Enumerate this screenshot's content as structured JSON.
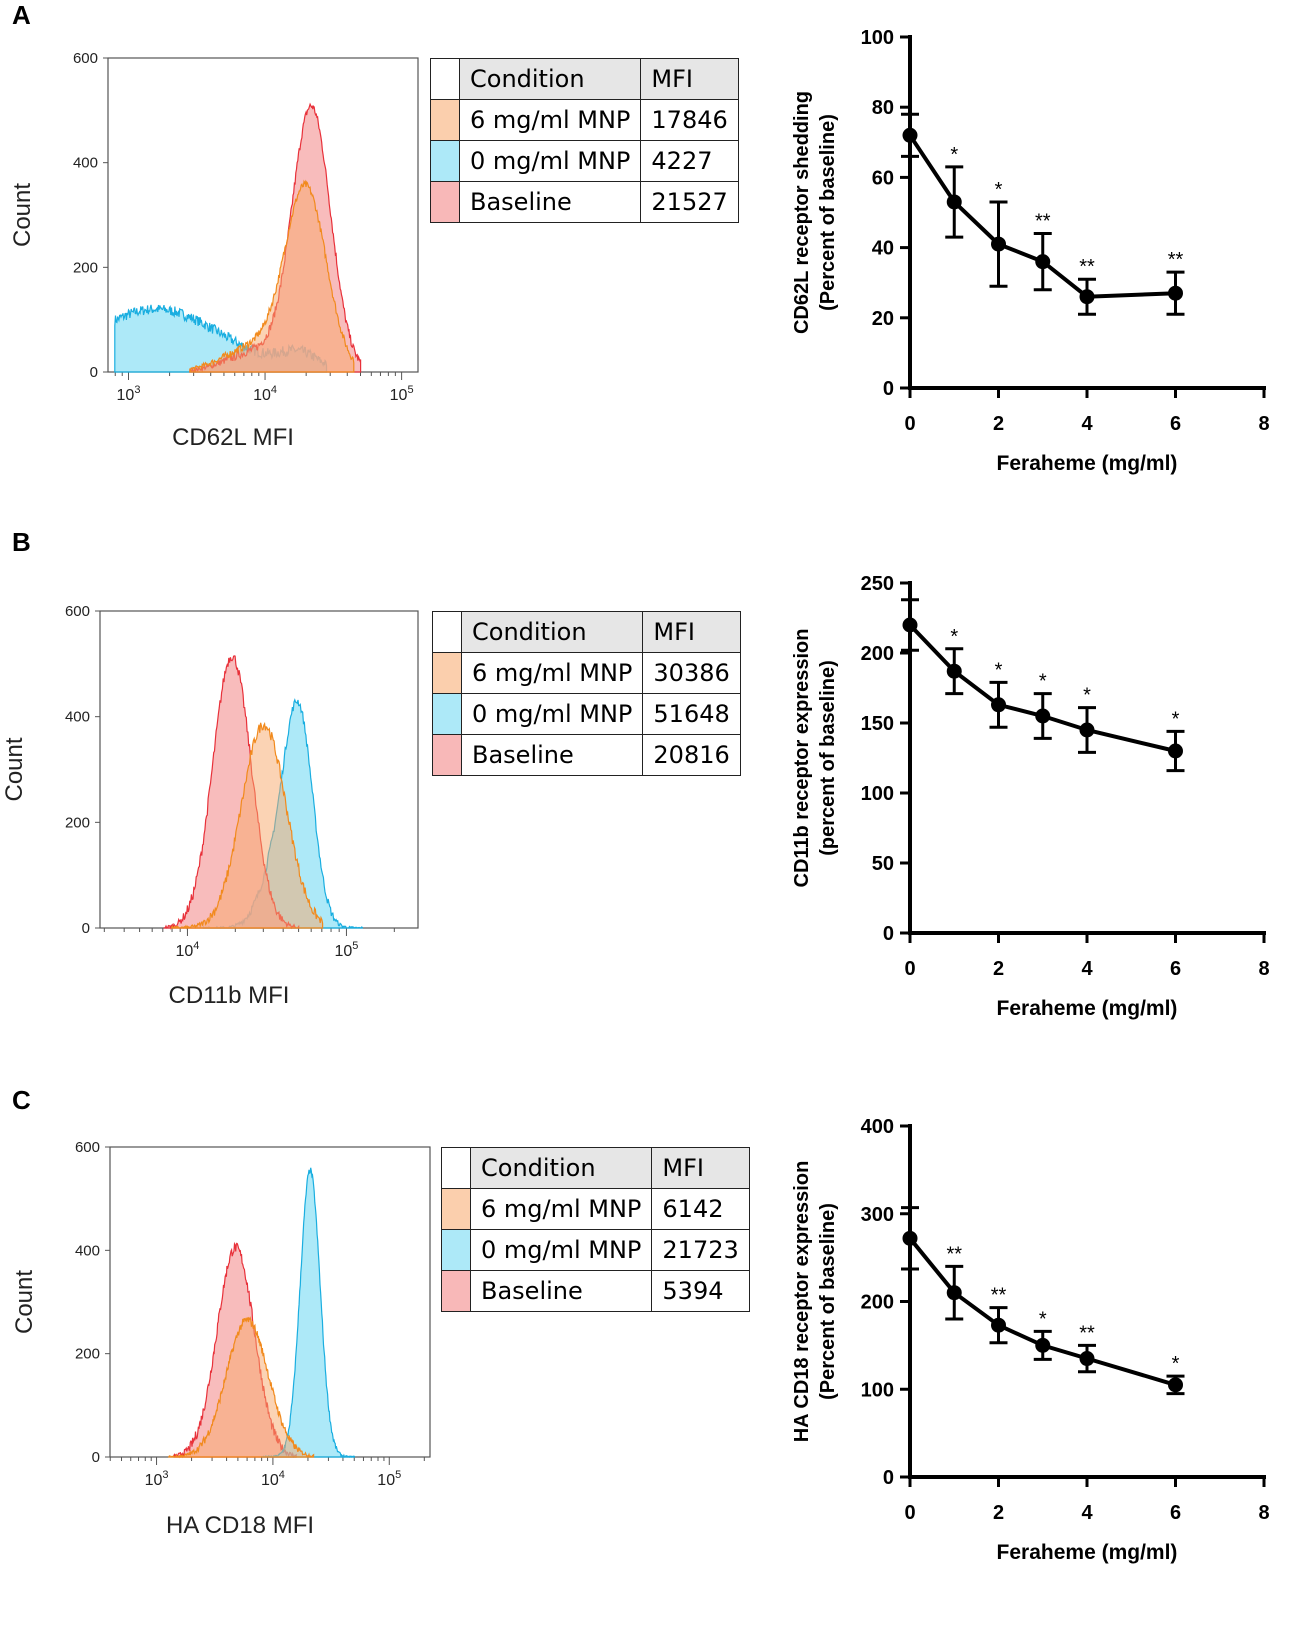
{
  "colors": {
    "orange": "#f7a86a",
    "blue": "#5cd4f2",
    "red": "#f5a0a0",
    "orange_line": "#f18a1d",
    "blue_line": "#1aaee0",
    "red_line": "#e8313a"
  },
  "table_headers": {
    "condition": "Condition",
    "mfi": "MFI"
  },
  "chart_data": [
    {
      "panel": "A",
      "type": "histogram",
      "xlabel": "CD62L MFI",
      "ylabel": "Count",
      "ylim": [
        0,
        600
      ],
      "yticks": [
        "0",
        "200",
        "400",
        "600"
      ],
      "xlim_log": [
        2.85,
        5.12
      ],
      "xticks": [
        {
          "base": "10",
          "exp": "3",
          "v": 3
        },
        {
          "base": "10",
          "exp": "4",
          "v": 4
        },
        {
          "base": "10",
          "exp": "5",
          "v": 5
        }
      ],
      "series": [
        {
          "name": "0 mg/ml MNP",
          "color": "blue",
          "peaks": [
            {
              "c": 3.2,
              "s": 0.48,
              "h": 120
            },
            {
              "c": 4.25,
              "s": 0.14,
              "h": 30
            }
          ],
          "lo": 2.9,
          "hi": 4.45,
          "noise": 10
        },
        {
          "name": "Baseline",
          "color": "red",
          "peaks": [
            {
              "c": 4.34,
              "s": 0.14,
              "h": 500
            },
            {
              "c": 3.95,
              "s": 0.22,
              "h": 40
            }
          ],
          "lo": 3.45,
          "hi": 4.7,
          "noise": 8
        },
        {
          "name": "6 mg/ml MNP",
          "color": "orange",
          "peaks": [
            {
              "c": 4.3,
              "s": 0.15,
              "h": 340
            },
            {
              "c": 3.95,
              "s": 0.24,
              "h": 50
            }
          ],
          "lo": 3.45,
          "hi": 4.65,
          "noise": 7
        }
      ],
      "table": [
        {
          "condition": "6 mg/ml MNP",
          "mfi": "17846",
          "color": "orange"
        },
        {
          "condition": "0 mg/ml MNP",
          "mfi": "4227",
          "color": "blue"
        },
        {
          "condition": "Baseline",
          "mfi": "21527",
          "color": "red"
        }
      ]
    },
    {
      "panel": "A",
      "type": "line",
      "xlabel": "Feraheme (mg/ml)",
      "ylabel": [
        "CD62L receptor shedding",
        "(Percent of baseline)"
      ],
      "ylim": [
        0,
        100
      ],
      "yticks": [
        0,
        20,
        40,
        60,
        80,
        100
      ],
      "xlim": [
        0,
        8
      ],
      "xticks": [
        0,
        2,
        4,
        6,
        8
      ],
      "x": [
        0,
        1,
        2,
        3,
        4,
        6
      ],
      "y": [
        72,
        53,
        41,
        36,
        26,
        27
      ],
      "err": [
        6,
        10,
        12,
        8,
        5,
        6
      ],
      "sig": [
        "",
        "*",
        "*",
        "**",
        "**",
        "**"
      ]
    },
    {
      "panel": "B",
      "type": "histogram",
      "xlabel": "CD11b MFI",
      "ylabel": "Count",
      "ylim": [
        0,
        600
      ],
      "yticks": [
        "0",
        "200",
        "400",
        "600"
      ],
      "xlim_log": [
        3.45,
        5.45
      ],
      "xticks": [
        {
          "base": "10",
          "exp": "4",
          "v": 4
        },
        {
          "base": "10",
          "exp": "5",
          "v": 5
        }
      ],
      "series": [
        {
          "name": "0 mg/ml MNP",
          "color": "blue",
          "peaks": [
            {
              "c": 4.7,
              "s": 0.09,
              "h": 395
            },
            {
              "c": 4.55,
              "s": 0.1,
              "h": 100
            }
          ],
          "lo": 4.1,
          "hi": 5.1,
          "noise": 8
        },
        {
          "name": "Baseline",
          "color": "red",
          "peaks": [
            {
              "c": 4.28,
              "s": 0.12,
              "h": 515
            }
          ],
          "lo": 3.85,
          "hi": 4.7,
          "noise": 10
        },
        {
          "name": "6 mg/ml MNP",
          "color": "orange",
          "peaks": [
            {
              "c": 4.48,
              "s": 0.14,
              "h": 385
            }
          ],
          "lo": 3.9,
          "hi": 4.85,
          "noise": 10
        }
      ],
      "table": [
        {
          "condition": "6 mg/ml MNP",
          "mfi": "30386",
          "color": "orange"
        },
        {
          "condition": "0 mg/ml MNP",
          "mfi": "51648",
          "color": "blue"
        },
        {
          "condition": "Baseline",
          "mfi": "20816",
          "color": "red"
        }
      ]
    },
    {
      "panel": "B",
      "type": "line",
      "xlabel": "Feraheme (mg/ml)",
      "ylabel": [
        "CD11b receptor expression",
        "(percent of baseline)"
      ],
      "ylim": [
        0,
        250
      ],
      "yticks": [
        0,
        50,
        100,
        150,
        200,
        250
      ],
      "xlim": [
        0,
        8
      ],
      "xticks": [
        0,
        2,
        4,
        6,
        8
      ],
      "x": [
        0,
        1,
        2,
        3,
        4,
        6
      ],
      "y": [
        220,
        187,
        163,
        155,
        145,
        130
      ],
      "err": [
        18,
        16,
        16,
        16,
        16,
        14
      ],
      "sig": [
        "",
        "*",
        "*",
        "*",
        "*",
        "*"
      ]
    },
    {
      "panel": "C",
      "type": "histogram",
      "xlabel": "HA CD18 MFI",
      "ylabel": "Count",
      "ylim": [
        0,
        600
      ],
      "yticks": [
        "0",
        "200",
        "400",
        "600"
      ],
      "xlim_log": [
        2.6,
        5.35
      ],
      "xticks": [
        {
          "base": "10",
          "exp": "3",
          "v": 3
        },
        {
          "base": "10",
          "exp": "4",
          "v": 4
        },
        {
          "base": "10",
          "exp": "5",
          "v": 5
        }
      ],
      "series": [
        {
          "name": "Baseline",
          "color": "red",
          "peaks": [
            {
              "c": 3.68,
              "s": 0.16,
              "h": 405
            }
          ],
          "lo": 3.15,
          "hi": 4.2,
          "noise": 10
        },
        {
          "name": "0 mg/ml MNP",
          "color": "blue",
          "peaks": [
            {
              "c": 4.32,
              "s": 0.085,
              "h": 555
            }
          ],
          "lo": 3.9,
          "hi": 4.7,
          "noise": 6
        },
        {
          "name": "6 mg/ml MNP",
          "color": "orange",
          "peaks": [
            {
              "c": 3.78,
              "s": 0.18,
              "h": 265
            }
          ],
          "lo": 3.1,
          "hi": 4.35,
          "noise": 8
        }
      ],
      "table": [
        {
          "condition": "6 mg/ml MNP",
          "mfi": "6142",
          "color": "orange"
        },
        {
          "condition": "0 mg/ml MNP",
          "mfi": "21723",
          "color": "blue"
        },
        {
          "condition": "Baseline",
          "mfi": "5394",
          "color": "red"
        }
      ]
    },
    {
      "panel": "C",
      "type": "line",
      "xlabel": "Feraheme (mg/ml)",
      "ylabel": [
        "HA CD18 receptor expression",
        "(Percent of baseline)"
      ],
      "ylim": [
        0,
        400
      ],
      "yticks": [
        0,
        100,
        200,
        300,
        400
      ],
      "xlim": [
        0,
        8
      ],
      "xticks": [
        0,
        2,
        4,
        6,
        8
      ],
      "x": [
        0,
        1,
        2,
        3,
        4,
        6
      ],
      "y": [
        272,
        210,
        173,
        150,
        135,
        105
      ],
      "err": [
        35,
        30,
        20,
        16,
        15,
        10
      ],
      "sig": [
        "",
        "**",
        "**",
        "*",
        "**",
        "*"
      ]
    }
  ]
}
